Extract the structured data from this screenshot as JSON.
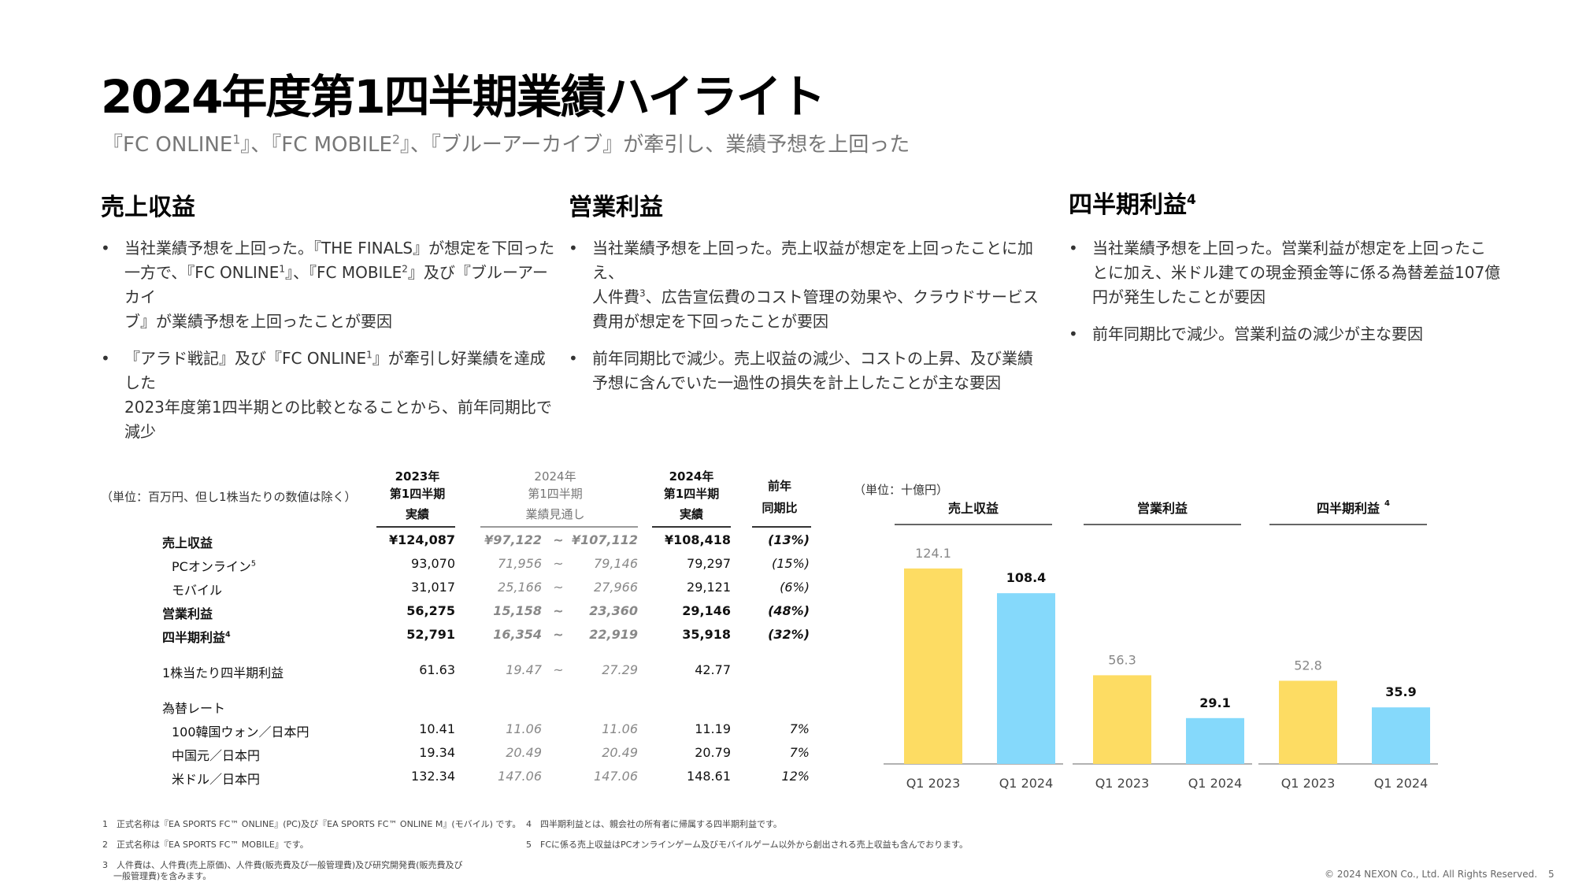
{
  "title": "2024年度第1四半期業績ハイライト",
  "subtitle": {
    "p1": "『FC ONLINE",
    "s1": "1",
    "p2": "』、『FC MOBILE",
    "s2": "2",
    "p3": "』、『ブルーアーカイブ』が牽引し、業績予想を上回った"
  },
  "columns": {
    "revenue": {
      "heading": "売上収益",
      "b1_l1": "当社業績予想を上回った。『THE FINALS』が想定を下回った",
      "b1_l2a": "一方で、『FC ONLINE",
      "b1_l2s": "1",
      "b1_l2b": "』、『FC MOBILE",
      "b1_l2s2": "2",
      "b1_l2c": "』及び『ブルーアーカイ",
      "b1_l3": "ブ』が業績予想を上回ったことが要因",
      "b2_l1a": "『アラド戦記』及び『FC ONLINE",
      "b2_l1s": "1",
      "b2_l1b": "』が牽引し好業績を達成した",
      "b2_l2": "2023年度第1四半期との比較となることから、前年同期比で",
      "b2_l3": "減少"
    },
    "operating": {
      "heading": "営業利益",
      "b1_l1": "当社業績予想を上回った。売上収益が想定を上回ったことに加え、",
      "b1_l2a": "人件費",
      "b1_l2s": "3",
      "b1_l2b": "、広告宣伝費のコスト管理の効果や、クラウドサービス",
      "b1_l3": "費用が想定を下回ったことが要因",
      "b2_l1": "前年同期比で減少。売上収益の減少、コストの上昇、及び業績",
      "b2_l2": "予想に含んでいた一過性の損失を計上したことが主な要因"
    },
    "quarterly": {
      "heading": "四半期利益",
      "heading_sup": "4",
      "b1_l1": "当社業績予想を上回った。営業利益が想定を上回ったこ",
      "b1_l2": "とに加え、米ドル建ての現金預金等に係る為替差益107億",
      "b1_l3": "円が発生したことが要因",
      "b2_l1": "前年同期比で減少。営業利益の減少が主な要因"
    }
  },
  "table": {
    "unit": "（単位：百万円、但し1株当たりの数値は除く）",
    "h2023_1": "2023年",
    "h2023_2": "第1四半期",
    "h2023_3": "実績",
    "hfc_1": "2024年",
    "hfc_2": "第1四半期",
    "hfc_3": "業績見通し",
    "h2024_1": "2024年",
    "h2024_2": "第1四半期",
    "h2024_3": "実績",
    "hyoy_1": "前年",
    "hyoy_2": "同期比",
    "rows": [
      {
        "label": "売上収益",
        "sup": "",
        "a": "¥124,087",
        "lo": "¥97,122",
        "tilde": "~",
        "hi": "¥107,112",
        "b": "¥108,418",
        "yoy": "(13%)"
      },
      {
        "label": "PCオンライン",
        "sup": "5",
        "a": "93,070",
        "lo": "71,956",
        "tilde": "~",
        "hi": "79,146",
        "b": "79,297",
        "yoy": "(15%)"
      },
      {
        "label": "モバイル",
        "sup": "",
        "a": "31,017",
        "lo": "25,166",
        "tilde": "~",
        "hi": "27,966",
        "b": "29,121",
        "yoy": "(6%)"
      },
      {
        "label": "営業利益",
        "sup": "",
        "a": "56,275",
        "lo": "15,158",
        "tilde": "~",
        "hi": "23,360",
        "b": "29,146",
        "yoy": "(48%)"
      },
      {
        "label": "四半期利益",
        "sup": "4",
        "a": "52,791",
        "lo": "16,354",
        "tilde": "~",
        "hi": "22,919",
        "b": "35,918",
        "yoy": "(32%)"
      },
      {
        "label": "1株当たり四半期利益",
        "sup": "",
        "a": "61.63",
        "lo": "19.47",
        "tilde": "~",
        "hi": "27.29",
        "b": "42.77",
        "yoy": ""
      },
      {
        "label": "為替レート",
        "sup": "",
        "a": "",
        "lo": "",
        "tilde": "",
        "hi": "",
        "b": "",
        "yoy": ""
      },
      {
        "label": "100韓国ウォン／日本円",
        "sup": "",
        "a": "10.41",
        "lo": "11.06",
        "tilde": "",
        "hi": "11.06",
        "b": "11.19",
        "yoy": "7%"
      },
      {
        "label": "中国元／日本円",
        "sup": "",
        "a": "19.34",
        "lo": "20.49",
        "tilde": "",
        "hi": "20.49",
        "b": "20.79",
        "yoy": "7%"
      },
      {
        "label": "米ドル／日本円",
        "sup": "",
        "a": "132.34",
        "lo": "147.06",
        "tilde": "",
        "hi": "147.06",
        "b": "148.61",
        "yoy": "12%"
      }
    ]
  },
  "chart_data": {
    "type": "bar",
    "unit": "（単位：十億円）",
    "categories": [
      "Q1 2023",
      "Q1 2024"
    ],
    "groups": [
      {
        "name": "売上収益",
        "sup": "",
        "values": [
          124.1,
          108.4
        ],
        "labels": [
          "124.1",
          "108.4"
        ]
      },
      {
        "name": "営業利益",
        "sup": "",
        "values": [
          56.3,
          29.1
        ],
        "labels": [
          "56.3",
          "29.1"
        ]
      },
      {
        "name": "四半期利益",
        "sup": "4",
        "values": [
          52.8,
          35.9
        ],
        "labels": [
          "52.8",
          "35.9"
        ]
      }
    ],
    "colors": {
      "q1_2023": "#FDDC63",
      "q1_2024": "#85D9FB"
    },
    "ylim": [
      0,
      130
    ]
  },
  "footnotes": {
    "f1": "1　正式名称は『EA SPORTS FC™ ONLINE』(PC)及び『EA SPORTS FC™ ONLINE M』(モバイル) です。",
    "f2": "2　正式名称は『EA SPORTS FC™ MOBILE』です。",
    "f3a": "3　人件費は、人件費(売上原価)、人件費(販売費及び一般管理費)及び研究開発費(販売費及び",
    "f3b": "一般管理費)を含みます。",
    "f4": "4　四半期利益とは、親会社の所有者に帰属する四半期利益です。",
    "f5": "5　FCに係る売上収益はPCオンラインゲーム及びモバイルゲーム以外から創出される売上収益も含んでおります。"
  },
  "copyright": "© 2024 NEXON Co., Ltd. All Rights Reserved.",
  "page_number": "5"
}
